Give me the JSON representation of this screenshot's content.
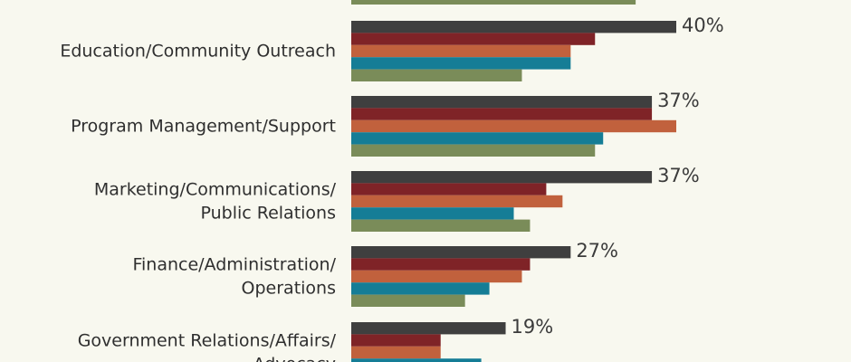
{
  "chart_data": {
    "type": "bar",
    "orientation": "horizontal",
    "categories": [
      "Education/Community Outreach",
      "Program Management/Support",
      "Marketing/Communications/\nPublic Relations",
      "Finance/Administration/\nOperations",
      "Government Relations/Affairs/\nAdvocacy"
    ],
    "top_row_partial_values": [
      null,
      null,
      null,
      null,
      35
    ],
    "series": [
      {
        "name": "",
        "color": "#3f3f3f",
        "values": [
          40,
          37,
          37,
          27,
          19
        ]
      },
      {
        "name": "",
        "color": "#7f2327",
        "values": [
          30,
          37,
          24,
          22,
          11
        ]
      },
      {
        "name": "",
        "color": "#c1613d",
        "values": [
          27,
          40,
          26,
          21,
          11
        ]
      },
      {
        "name": "",
        "color": "#157d96",
        "values": [
          27,
          31,
          20,
          17,
          16
        ]
      },
      {
        "name": "",
        "color": "#7a8c59",
        "values": [
          21,
          30,
          22,
          14,
          0
        ]
      }
    ],
    "data_labels": [
      "40%",
      "37%",
      "37%",
      "27%",
      "19%"
    ],
    "xlim": [
      0,
      40
    ],
    "grid": false,
    "legend": "none"
  }
}
